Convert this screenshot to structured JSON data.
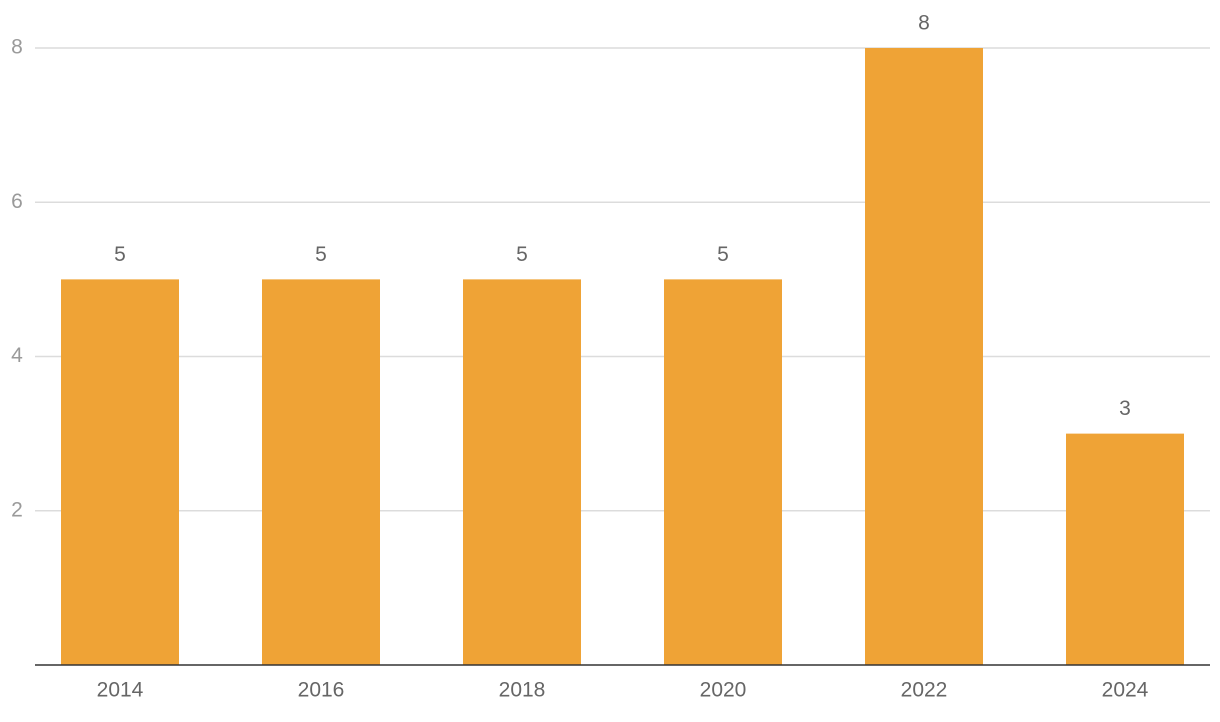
{
  "chart_data": {
    "type": "bar",
    "categories": [
      "2014",
      "2016",
      "2018",
      "2020",
      "2022",
      "2024"
    ],
    "values": [
      5,
      5,
      5,
      5,
      8,
      3
    ],
    "color": "#efa336",
    "ylim": [
      0,
      8
    ],
    "yticks": [
      2,
      4,
      6,
      8
    ],
    "grid": true
  }
}
